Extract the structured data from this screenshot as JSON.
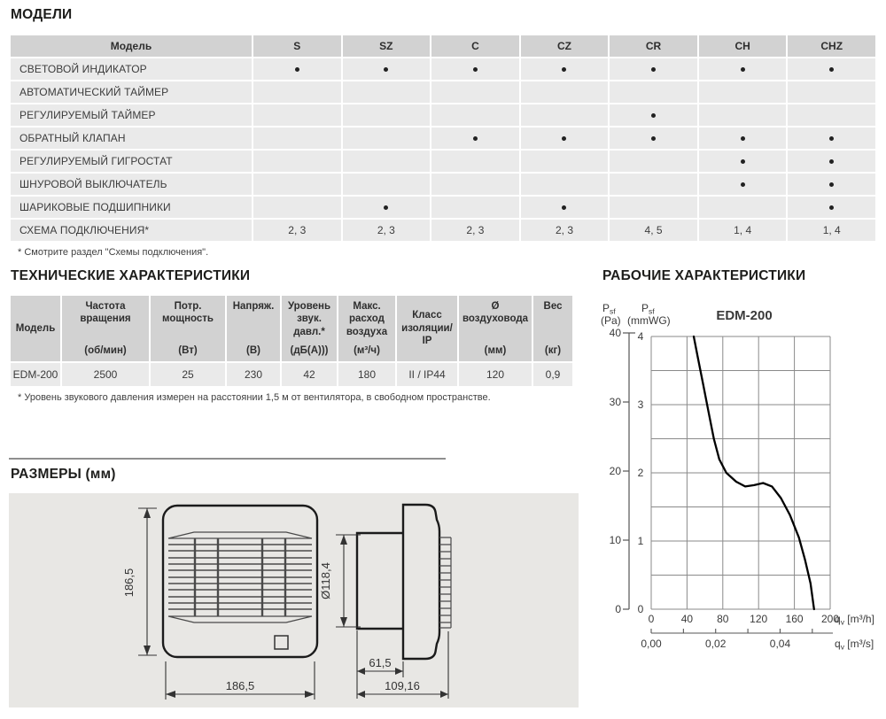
{
  "models_section": {
    "title": "МОДЕЛИ",
    "table": {
      "first_col_header": "Модель",
      "model_columns": [
        "S",
        "SZ",
        "C",
        "CZ",
        "CR",
        "CH",
        "CHZ"
      ],
      "rows": [
        {
          "label": "СВЕТОВОЙ ИНДИКАТОР",
          "cells": [
            true,
            true,
            true,
            true,
            true,
            true,
            true
          ]
        },
        {
          "label": "АВТОМАТИЧЕСКИЙ ТАЙМЕР",
          "cells": [
            false,
            false,
            false,
            false,
            false,
            false,
            false
          ]
        },
        {
          "label": "РЕГУЛИРУЕМЫЙ ТАЙМЕР",
          "cells": [
            false,
            false,
            false,
            false,
            true,
            false,
            false
          ]
        },
        {
          "label": "ОБРАТНЫЙ КЛАПАН",
          "cells": [
            false,
            false,
            true,
            true,
            true,
            true,
            true
          ]
        },
        {
          "label": "РЕГУЛИРУЕМЫЙ ГИГРОСТАТ",
          "cells": [
            false,
            false,
            false,
            false,
            false,
            true,
            true
          ]
        },
        {
          "label": "ШНУРОВОЙ ВЫКЛЮЧАТЕЛЬ",
          "cells": [
            false,
            false,
            false,
            false,
            false,
            true,
            true
          ]
        },
        {
          "label": "ШАРИКОВЫЕ ПОДШИПНИКИ",
          "cells": [
            false,
            true,
            false,
            true,
            false,
            false,
            true
          ]
        },
        {
          "label": "СХЕМА ПОДКЛЮЧЕНИЯ*",
          "cells": [
            "2, 3",
            "2, 3",
            "2, 3",
            "2, 3",
            "4, 5",
            "1, 4",
            "1, 4"
          ]
        }
      ]
    },
    "footnote": "* Смотрите раздел \"Схемы подключения\"."
  },
  "tech_section": {
    "title": "ТЕХНИЧЕСКИЕ ХАРАКТЕРИСТИКИ",
    "table": {
      "headers": [
        {
          "name": "Модель",
          "unit": ""
        },
        {
          "name": "Частота вращения",
          "unit": "(об/мин)"
        },
        {
          "name": "Потр. мощность",
          "unit": "(Вт)"
        },
        {
          "name": "Напряж.",
          "unit": "(В)"
        },
        {
          "name": "Уровень звук. давл.*",
          "unit": "(дБ(А)))"
        },
        {
          "name": "Макс. расход воздуха",
          "unit": "(м³/ч)"
        },
        {
          "name": "Класс изоляции/ IP",
          "unit": ""
        },
        {
          "name": "Ø воздуховода",
          "unit": "(мм)"
        },
        {
          "name": "Вес",
          "unit": "(кг)"
        }
      ],
      "row": [
        "EDM-200",
        "2500",
        "25",
        "230",
        "42",
        "180",
        "II / IP44",
        "120",
        "0,9"
      ]
    },
    "footnote": "* Уровень звукового давления измерен на расстоянии 1,5 м от вентилятора, в свободном пространстве."
  },
  "dimensions_section": {
    "title": "РАЗМЕРЫ (мм)",
    "front_height": "186,5",
    "front_width": "186,5",
    "duct_diameter": "Ø118,4",
    "duct_length": "61,5",
    "total_depth": "109,16"
  },
  "performance_section": {
    "title": "РАБОЧИЕ ХАРАКТЕРИСТИКИ"
  },
  "chart_data": {
    "type": "line",
    "title": "EDM-200",
    "y_axis": {
      "symbol": "P",
      "symbol_sub": "sf",
      "unit_pa": "(Pa)",
      "unit_mmwg": "(mmWG)",
      "ticks_pa": [
        40,
        30,
        20,
        10,
        0
      ],
      "ticks_mmwg": [
        4,
        3,
        2,
        1,
        0
      ],
      "range_mmwg": [
        0,
        4
      ],
      "range_pa": [
        0,
        40
      ]
    },
    "x_axis": {
      "symbol": "q",
      "symbol_sub": "v",
      "unit_m3h": "[m³/h]",
      "unit_m3s": "[m³/s]",
      "ticks_m3h": [
        0,
        40,
        80,
        120,
        160,
        200
      ],
      "tick_values_m3s": [
        0,
        0.01,
        0.02,
        0.03,
        0.04,
        0.05
      ],
      "tick_labels_m3s": [
        "0,00",
        "0,02",
        "0,04"
      ],
      "range_m3h": [
        0,
        200
      ]
    },
    "grid": true,
    "legend": "none",
    "curve_points_m3h_mmwg": [
      [
        47.5,
        4.0
      ],
      [
        52,
        3.7
      ],
      [
        58,
        3.3
      ],
      [
        64,
        2.9
      ],
      [
        70,
        2.5
      ],
      [
        76,
        2.2
      ],
      [
        84,
        2.0
      ],
      [
        95,
        1.87
      ],
      [
        105,
        1.8
      ],
      [
        115,
        1.82
      ],
      [
        125,
        1.85
      ],
      [
        135,
        1.8
      ],
      [
        145,
        1.63
      ],
      [
        155,
        1.38
      ],
      [
        165,
        1.05
      ],
      [
        172,
        0.72
      ],
      [
        178,
        0.38
      ],
      [
        182,
        0
      ]
    ]
  }
}
